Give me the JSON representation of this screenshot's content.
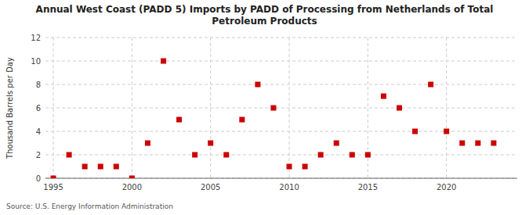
{
  "chart_data": {
    "type": "scatter",
    "title": "Annual West Coast (PADD 5) Imports by PADD of Processing from Netherlands of Total\nPetroleum Products",
    "y_label": "Thousand Barrels per Day",
    "annotations": [
      "Source: U.S. Energy Information Administration"
    ],
    "x": [
      1995,
      1996,
      1997,
      1998,
      1999,
      2000,
      2001,
      2002,
      2003,
      2004,
      2005,
      2006,
      2007,
      2008,
      2009,
      2010,
      2011,
      2012,
      2013,
      2014,
      2015,
      2016,
      2017,
      2018,
      2019,
      2020,
      2021,
      2022,
      2023
    ],
    "values": [
      0,
      2,
      1,
      1,
      1,
      0,
      3,
      10,
      5,
      2,
      3,
      2,
      5,
      8,
      6,
      1,
      1,
      2,
      3,
      2,
      2,
      7,
      6,
      4,
      8,
      4,
      3,
      3,
      3
    ],
    "color": "#cc0000",
    "marker": "square",
    "xlim": [
      1994.5,
      2024.5
    ],
    "xticks": [
      1995,
      2000,
      2005,
      2010,
      2015,
      2020
    ],
    "ylim": [
      0,
      12
    ],
    "yticks": [
      0,
      2,
      4,
      6,
      8,
      10,
      12
    ],
    "grid": true
  }
}
